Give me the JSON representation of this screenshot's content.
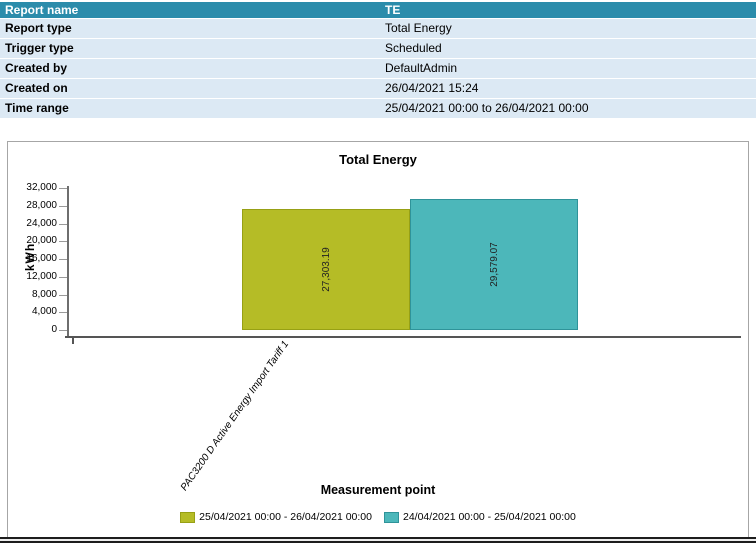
{
  "report_info": {
    "header": {
      "label": "Report name",
      "value": "TE"
    },
    "rows": [
      {
        "label": "Report type",
        "value": "Total Energy"
      },
      {
        "label": "Trigger type",
        "value": "Scheduled"
      },
      {
        "label": "Created by",
        "value": "DefaultAdmin"
      },
      {
        "label": "Created on",
        "value": "26/04/2021 15:24"
      },
      {
        "label": "Time range",
        "value": "25/04/2021 00:00 to 26/04/2021 00:00"
      }
    ]
  },
  "chart_data": {
    "type": "bar",
    "title": "Total Energy",
    "ylabel": "kWh",
    "xlabel": "Measurement point",
    "categories": [
      "PAC3200 D Active Energy Import Tariff 1"
    ],
    "series": [
      {
        "name": "25/04/2021 00:00 - 26/04/2021 00:00",
        "values": [
          27303.19
        ],
        "color": "#b5bc26",
        "border": "#97a015"
      },
      {
        "name": "24/04/2021 00:00 - 25/04/2021 00:00",
        "values": [
          29579.07
        ],
        "color": "#4cb7ba",
        "border": "#2f9399"
      }
    ],
    "bar_labels": [
      "27,303.19",
      "29,579.07"
    ],
    "ylim": [
      0,
      32000
    ],
    "ytick_step": 4000,
    "yticks": [
      "0",
      "4,000",
      "8,000",
      "12,000",
      "16,000",
      "20,000",
      "24,000",
      "28,000",
      "32,000"
    ],
    "grid": false,
    "legend_position": "bottom"
  },
  "colors": {
    "header_bg": "#2b8cab",
    "header_text": "#ffffff",
    "row_bg": "#dce9f4",
    "axis": "#555555",
    "chart_border": "#a6a6a6"
  }
}
